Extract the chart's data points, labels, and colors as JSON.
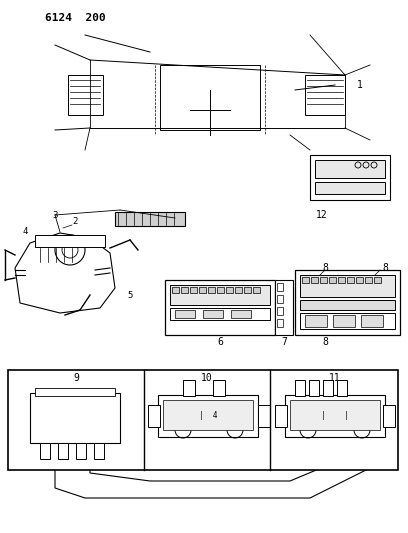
{
  "title": "6124 200",
  "bg_color": "#ffffff",
  "line_color": "#000000",
  "label_color": "#000000",
  "fig_width": 4.08,
  "fig_height": 5.33,
  "dpi": 100
}
